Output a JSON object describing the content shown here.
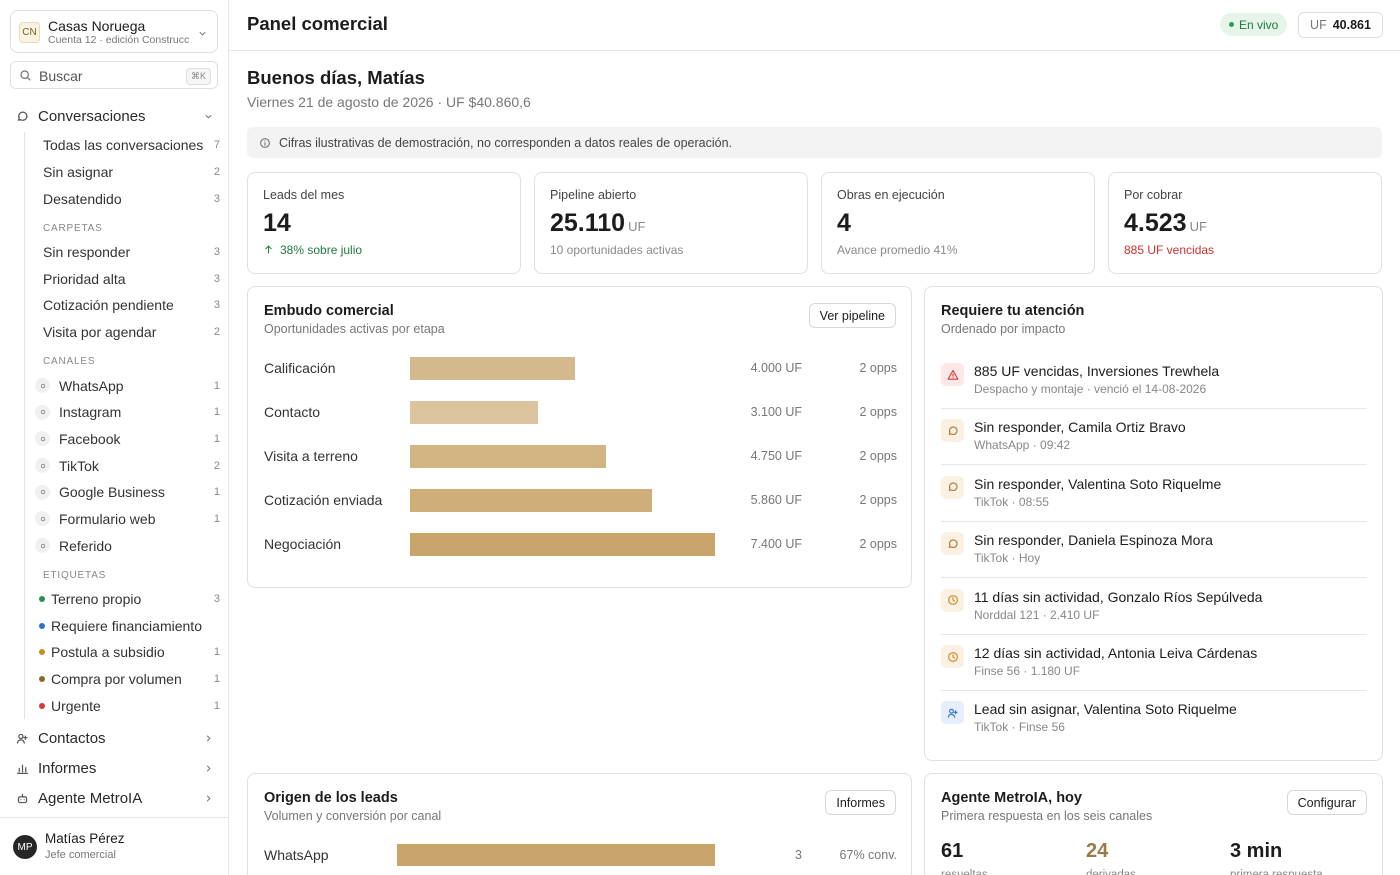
{
  "sidebar": {
    "account": {
      "initials": "CN",
      "name": "Casas Noruega",
      "sub": "Cuenta 12 · edición Construcc"
    },
    "search": {
      "placeholder": "Buscar",
      "shortcut": "⌘K"
    },
    "conversations": {
      "label": "Conversaciones",
      "items": [
        {
          "label": "Todas las conversaciones",
          "count": 7
        },
        {
          "label": "Sin asignar",
          "count": 2
        },
        {
          "label": "Desatendido",
          "count": 3
        }
      ],
      "sections": [
        {
          "title": "CARPETAS",
          "items": [
            {
              "label": "Sin responder",
              "count": 3
            },
            {
              "label": "Prioridad alta",
              "count": 3
            },
            {
              "label": "Cotización pendiente",
              "count": 3
            },
            {
              "label": "Visita por agendar",
              "count": 2
            }
          ]
        },
        {
          "title": "CANALES",
          "items": [
            {
              "label": "WhatsApp",
              "count": 1
            },
            {
              "label": "Instagram",
              "count": 1
            },
            {
              "label": "Facebook",
              "count": 1
            },
            {
              "label": "TikTok",
              "count": 2
            },
            {
              "label": "Google Business",
              "count": 1
            },
            {
              "label": "Formulario web",
              "count": 1
            },
            {
              "label": "Referido"
            }
          ]
        },
        {
          "title": "ETIQUETAS",
          "items": [
            {
              "label": "Terreno propio",
              "count": 3,
              "color": "#2e8b57"
            },
            {
              "label": "Requiere financiamiento",
              "color": "#2f6fd0"
            },
            {
              "label": "Postula a subsidio",
              "count": 1,
              "color": "#c98a1e"
            },
            {
              "label": "Compra por volumen",
              "count": 1,
              "color": "#8a6a2a"
            },
            {
              "label": "Urgente",
              "count": 1,
              "color": "#d63a3a"
            }
          ]
        }
      ]
    },
    "nav": [
      "Contactos",
      "Informes",
      "Agente MetroIA"
    ],
    "user": {
      "initials": "MP",
      "name": "Matías Pérez",
      "role": "Jefe comercial"
    }
  },
  "header": {
    "title": "Panel comercial",
    "status": "En vivo",
    "uf_label": "UF",
    "uf_value": "40.861"
  },
  "greeting": {
    "title": "Buenos días, Matías",
    "date": "Viernes 21 de agosto de 2026 · UF $40.860,6"
  },
  "notice": "Cifras ilustrativas de demostración, no corresponden a datos reales de operación.",
  "kpis": [
    {
      "label": "Leads del mes",
      "value": "14",
      "sub": "38% sobre julio",
      "color": "#1f7a3f"
    },
    {
      "label": "Pipeline abierto",
      "value": "25.110",
      "unit": "UF",
      "sub": "10 oportunidades activas",
      "color": "#8a8a8a"
    },
    {
      "label": "Obras en ejecución",
      "value": "4",
      "sub": "Avance promedio 41%",
      "color": "#8a8a8a"
    },
    {
      "label": "Por cobrar",
      "value": "4.523",
      "unit": "UF",
      "sub": "885 UF vencidas",
      "color": "#d22f2f"
    }
  ],
  "funnel": {
    "title": "Embudo comercial",
    "subtitle": "Oportunidades activas por etapa",
    "button": "Ver pipeline",
    "stages": [
      {
        "label": "Calificación",
        "value": 4000,
        "value_label": "4.000 UF",
        "count": "2 opps",
        "color": "#d4b98c"
      },
      {
        "label": "Contacto",
        "value": 3100,
        "value_label": "3.100 UF",
        "count": "2 opps",
        "color": "#dcc59e"
      },
      {
        "label": "Visita a terreno",
        "value": 4750,
        "value_label": "4.750 UF",
        "count": "2 opps",
        "color": "#d3b483"
      },
      {
        "label": "Cotización enviada",
        "value": 5860,
        "value_label": "5.860 UF",
        "count": "2 opps",
        "color": "#cfae79"
      },
      {
        "label": "Negociación",
        "value": 7400,
        "value_label": "7.400 UF",
        "count": "2 opps",
        "color": "#c9a56b"
      }
    ]
  },
  "attention": {
    "title": "Requiere tu atención",
    "subtitle": "Ordenado por impacto",
    "items": [
      {
        "icon": "alert",
        "title": "885 UF vencidas, Inversiones Trewhela",
        "sub": "Despacho y montaje · venció el 14-08-2026"
      },
      {
        "icon": "chat",
        "title": "Sin responder, Camila Ortiz Bravo",
        "sub": "WhatsApp · 09:42"
      },
      {
        "icon": "chat",
        "title": "Sin responder, Valentina Soto Riquelme",
        "sub": "TikTok · 08:55"
      },
      {
        "icon": "chat",
        "title": "Sin responder, Daniela Espinoza Mora",
        "sub": "TikTok · Hoy"
      },
      {
        "icon": "clock",
        "title": "11 días sin actividad, Gonzalo Ríos Sepúlveda",
        "sub": "Norddal 121 · 2.410 UF"
      },
      {
        "icon": "clock",
        "title": "12 días sin actividad, Antonia Leiva Cárdenas",
        "sub": "Finse 56 · 1.180 UF"
      },
      {
        "icon": "user",
        "title": "Lead sin asignar, Valentina Soto Riquelme",
        "sub": "TikTok · Finse 56"
      }
    ]
  },
  "origin": {
    "title": "Origen de los leads",
    "subtitle": "Volumen y conversión por canal",
    "button": "Informes",
    "rows": [
      {
        "label": "WhatsApp",
        "value": 3,
        "conversion": "67% conv.",
        "color": "#c9a56b"
      }
    ]
  },
  "agent": {
    "title": "Agente MetroIA, hoy",
    "subtitle": "Primera respuesta en los seis canales",
    "button": "Configurar",
    "stats": [
      {
        "value": "61",
        "label": "resueltas",
        "color": "#1c1c1c"
      },
      {
        "value": "24",
        "label": "derivadas",
        "color": "#9a7a45"
      },
      {
        "value": "3 min",
        "label": "primera respuesta",
        "color": "#1c1c1c"
      }
    ]
  }
}
